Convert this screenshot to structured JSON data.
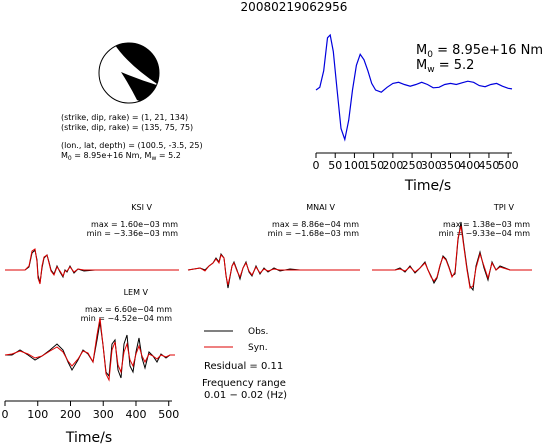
{
  "title": "20080219062956",
  "beachball": {
    "compression_color": "#000000",
    "dilatation_color": "#ffffff"
  },
  "params": {
    "sdr1": "(strike, dip, rake) = (1, 21, 134)",
    "sdr2": "(strike, dip, rake) = (135, 75, 75)",
    "loc": "(lon., lat, depth) = (100.5, -3.5, 25)",
    "m0_prefix": "M",
    "m0_sub": "0",
    "m0_text": " = 8.95e+16 Nm, M",
    "mw_sub": "w",
    "mw_text": " = 5.2"
  },
  "stf": {
    "m0_prefix": "M",
    "m0_sub": "0",
    "m0_value": " = 8.95e+16 Nm",
    "mw_prefix": "M",
    "mw_sub": "w",
    "mw_value": " = 5.2",
    "xlabel": "Time/s",
    "xticks": [
      0,
      50,
      100,
      150,
      200,
      250,
      300,
      350,
      400,
      450,
      500
    ],
    "color": "#0000dd"
  },
  "stations": [
    {
      "name": "KSI V",
      "max": "max = 1.60e−03 mm",
      "min": "min = −3.36e−03 mm"
    },
    {
      "name": "MNAI V",
      "max": "max = 8.86e−04 mm",
      "min": "min = −1.68e−03 mm"
    },
    {
      "name": "TPI V",
      "max": "max = 1.38e−03 mm",
      "min": "min = −9.33e−04 mm"
    },
    {
      "name": "LEM V",
      "max": "max = 6.60e−04 mm",
      "min": "min = −4.52e−04 mm"
    }
  ],
  "legend": {
    "obs": "Obs.",
    "syn": "Syn.",
    "obs_color": "#000000",
    "syn_color": "#dd0000"
  },
  "residual": "Residual = 0.11",
  "freq_label": "Frequency range",
  "freq_value": "0.01 − 0.02 (Hz)",
  "wave_axis": {
    "xlabel": "Time/s",
    "xticks": [
      0,
      100,
      200,
      300,
      400,
      500
    ]
  },
  "chart_data": {
    "type": "line",
    "x_range": [
      0,
      510
    ],
    "series": [
      {
        "x": [
          0,
          10,
          20,
          30,
          37,
          45,
          55,
          65,
          75,
          85,
          95,
          105,
          115,
          125,
          135,
          145,
          155,
          170,
          185,
          200,
          215,
          230,
          245,
          260,
          275,
          290,
          305,
          320,
          335,
          350,
          365,
          380,
          395,
          410,
          425,
          440,
          455,
          470,
          485,
          500,
          510
        ],
        "y": [
          0,
          0.05,
          0.35,
          0.95,
          1.0,
          0.7,
          0.0,
          -0.7,
          -0.9,
          -0.55,
          0.0,
          0.45,
          0.65,
          0.55,
          0.35,
          0.12,
          0.0,
          -0.04,
          0.05,
          0.12,
          0.14,
          0.1,
          0.07,
          0.1,
          0.14,
          0.1,
          0.04,
          0.05,
          0.1,
          0.12,
          0.1,
          0.13,
          0.16,
          0.14,
          0.08,
          0.06,
          0.1,
          0.12,
          0.07,
          0.03,
          0.02
        ]
      }
    ]
  }
}
